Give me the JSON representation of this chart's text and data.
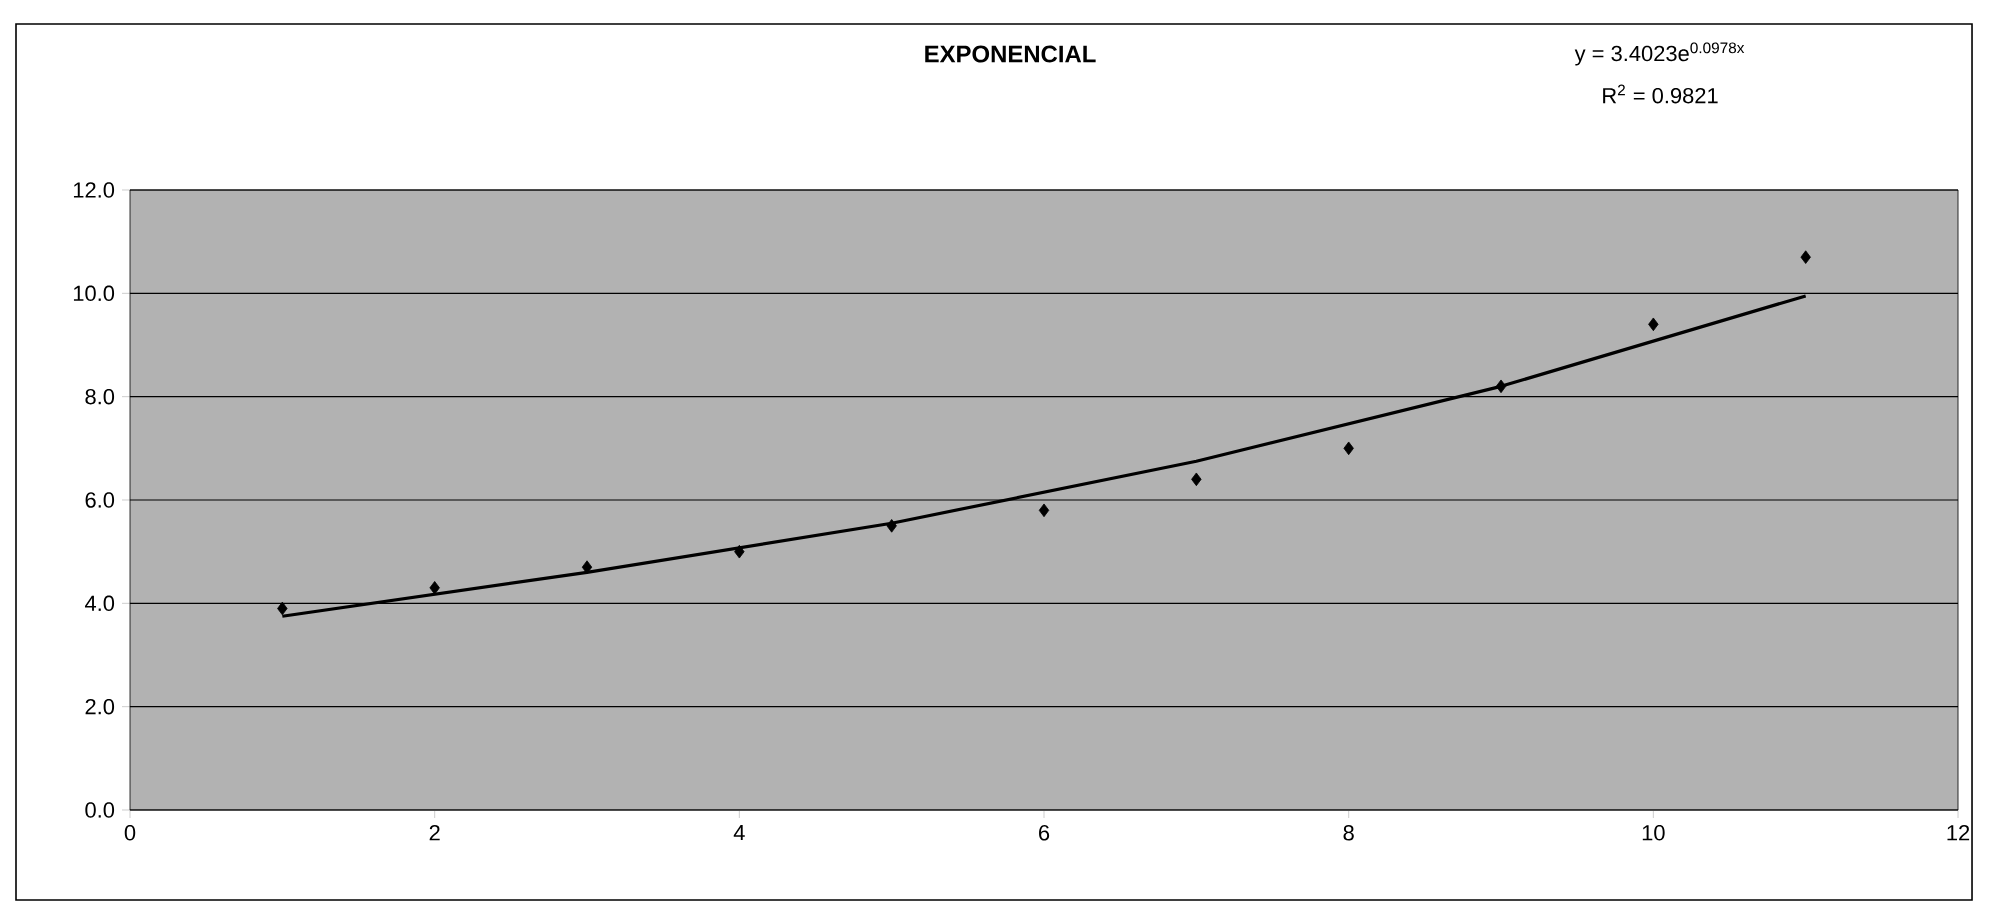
{
  "chart_data": {
    "type": "scatter",
    "title": "EXPONENCIAL",
    "annotations": [
      "y = 3.4023e$^{0.0978x}$",
      "R$^{2}$ = 0.9821"
    ],
    "xlim": [
      0,
      12
    ],
    "xticks": [
      0,
      2,
      4,
      6,
      8,
      10,
      12
    ],
    "ylim": [
      0,
      12
    ],
    "yticks": [
      {
        "value": 0,
        "label": "0.0"
      },
      {
        "value": 2,
        "label": "2.0"
      },
      {
        "value": 4,
        "label": "4.0"
      },
      {
        "value": 6,
        "label": "6.0"
      },
      {
        "value": 8,
        "label": "8.0"
      },
      {
        "value": 10,
        "label": "10.0"
      },
      {
        "value": 12,
        "label": "12.0"
      }
    ],
    "grid": "y",
    "series": [
      {
        "type": "scatter",
        "color": "#000000",
        "marker": "diamond",
        "x": [
          1,
          2,
          3,
          4,
          5,
          6,
          7,
          8,
          9,
          10,
          11
        ],
        "values": [
          3.9,
          4.3,
          4.7,
          5.0,
          5.5,
          5.8,
          6.4,
          7.0,
          8.2,
          9.4,
          10.7
        ]
      },
      {
        "type": "line",
        "color": "#000000",
        "marker": "none",
        "line_style": "solid",
        "x": [
          1,
          3,
          5,
          7,
          9,
          11
        ],
        "values": [
          3.75,
          4.6,
          5.55,
          6.75,
          8.2,
          9.95
        ]
      }
    ]
  }
}
